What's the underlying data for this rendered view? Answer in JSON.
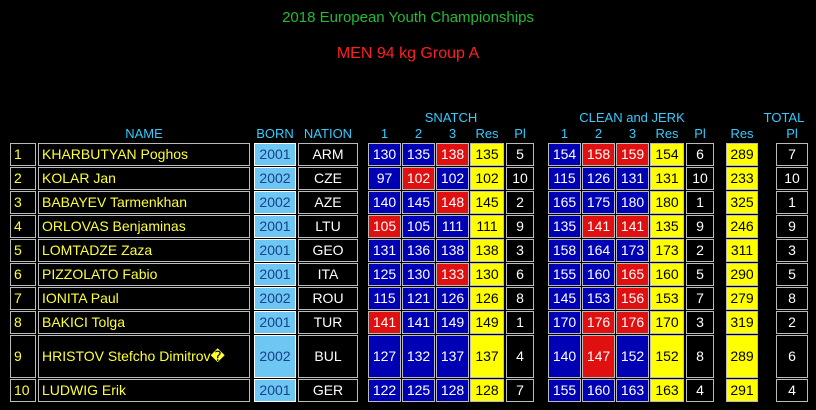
{
  "header": {
    "title": "2018 European Youth Championships",
    "subtitle": "MEN 94 kg Group A"
  },
  "table": {
    "group_headers": {
      "snatch": "SNATCH",
      "clean_and_jerk": "CLEAN and JERK",
      "total": "TOTAL"
    },
    "columns": [
      "NAME",
      "BORN",
      "NATION",
      "1",
      "2",
      "3",
      "Res",
      "Pl",
      "1",
      "2",
      "3",
      "Res",
      "Pl",
      "Res",
      "Pl"
    ],
    "rows": [
      {
        "rank": 1,
        "name": "KHARBUTYAN Poghos",
        "born": 2001,
        "nation": "ARM",
        "snatch": [
          {
            "kg": 130,
            "made": true
          },
          {
            "kg": 135,
            "made": true
          },
          {
            "kg": 138,
            "made": false
          }
        ],
        "snatch_result": 135,
        "snatch_place": 5,
        "clean_and_jerk": [
          {
            "kg": 154,
            "made": true
          },
          {
            "kg": 158,
            "made": false
          },
          {
            "kg": 159,
            "made": false
          }
        ],
        "cj_result": 154,
        "cj_place": 6,
        "total": 289,
        "total_place": 7
      },
      {
        "rank": 2,
        "name": "KOLAR Jan",
        "born": 2002,
        "nation": "CZE",
        "snatch": [
          {
            "kg": 97,
            "made": true
          },
          {
            "kg": 102,
            "made": false
          },
          {
            "kg": 102,
            "made": true
          }
        ],
        "snatch_result": 102,
        "snatch_place": 10,
        "clean_and_jerk": [
          {
            "kg": 115,
            "made": true
          },
          {
            "kg": 126,
            "made": true
          },
          {
            "kg": 131,
            "made": true
          }
        ],
        "cj_result": 131,
        "cj_place": 10,
        "total": 233,
        "total_place": 10
      },
      {
        "rank": 3,
        "name": "BABAYEV Tarmenkhan",
        "born": 2002,
        "nation": "AZE",
        "snatch": [
          {
            "kg": 140,
            "made": true
          },
          {
            "kg": 145,
            "made": true
          },
          {
            "kg": 148,
            "made": false
          }
        ],
        "snatch_result": 145,
        "snatch_place": 2,
        "clean_and_jerk": [
          {
            "kg": 165,
            "made": true
          },
          {
            "kg": 175,
            "made": true
          },
          {
            "kg": 180,
            "made": true
          }
        ],
        "cj_result": 180,
        "cj_place": 1,
        "total": 325,
        "total_place": 1
      },
      {
        "rank": 4,
        "name": "ORLOVAS Benjaminas",
        "born": 2001,
        "nation": "LTU",
        "snatch": [
          {
            "kg": 105,
            "made": false
          },
          {
            "kg": 105,
            "made": true
          },
          {
            "kg": 111,
            "made": true
          }
        ],
        "snatch_result": 111,
        "snatch_place": 9,
        "clean_and_jerk": [
          {
            "kg": 135,
            "made": true
          },
          {
            "kg": 141,
            "made": false
          },
          {
            "kg": 141,
            "made": false
          }
        ],
        "cj_result": 135,
        "cj_place": 9,
        "total": 246,
        "total_place": 9
      },
      {
        "rank": 5,
        "name": "LOMTADZE Zaza",
        "born": 2001,
        "nation": "GEO",
        "snatch": [
          {
            "kg": 131,
            "made": true
          },
          {
            "kg": 136,
            "made": true
          },
          {
            "kg": 138,
            "made": true
          }
        ],
        "snatch_result": 138,
        "snatch_place": 3,
        "clean_and_jerk": [
          {
            "kg": 158,
            "made": true
          },
          {
            "kg": 164,
            "made": true
          },
          {
            "kg": 173,
            "made": true
          }
        ],
        "cj_result": 173,
        "cj_place": 2,
        "total": 311,
        "total_place": 3
      },
      {
        "rank": 6,
        "name": "PIZZOLATO Fabio",
        "born": 2001,
        "nation": "ITA",
        "snatch": [
          {
            "kg": 125,
            "made": true
          },
          {
            "kg": 130,
            "made": true
          },
          {
            "kg": 133,
            "made": false
          }
        ],
        "snatch_result": 130,
        "snatch_place": 6,
        "clean_and_jerk": [
          {
            "kg": 155,
            "made": true
          },
          {
            "kg": 160,
            "made": true
          },
          {
            "kg": 165,
            "made": false
          }
        ],
        "cj_result": 160,
        "cj_place": 5,
        "total": 290,
        "total_place": 5
      },
      {
        "rank": 7,
        "name": "IONITA Paul",
        "born": 2002,
        "nation": "ROU",
        "snatch": [
          {
            "kg": 115,
            "made": true
          },
          {
            "kg": 121,
            "made": true
          },
          {
            "kg": 126,
            "made": true
          }
        ],
        "snatch_result": 126,
        "snatch_place": 8,
        "clean_and_jerk": [
          {
            "kg": 145,
            "made": true
          },
          {
            "kg": 153,
            "made": true
          },
          {
            "kg": 156,
            "made": false
          }
        ],
        "cj_result": 153,
        "cj_place": 7,
        "total": 279,
        "total_place": 8
      },
      {
        "rank": 8,
        "name": "BAKICI Tolga",
        "born": 2001,
        "nation": "TUR",
        "snatch": [
          {
            "kg": 141,
            "made": false
          },
          {
            "kg": 141,
            "made": true
          },
          {
            "kg": 149,
            "made": true
          }
        ],
        "snatch_result": 149,
        "snatch_place": 1,
        "clean_and_jerk": [
          {
            "kg": 170,
            "made": true
          },
          {
            "kg": 176,
            "made": false
          },
          {
            "kg": 176,
            "made": false
          }
        ],
        "cj_result": 170,
        "cj_place": 3,
        "total": 319,
        "total_place": 2
      },
      {
        "rank": 9,
        "name": "HRISTOV Stefcho Dimitrov�",
        "born": 2002,
        "nation": "BUL",
        "snatch": [
          {
            "kg": 127,
            "made": true
          },
          {
            "kg": 132,
            "made": true
          },
          {
            "kg": 137,
            "made": true
          }
        ],
        "snatch_result": 137,
        "snatch_place": 4,
        "clean_and_jerk": [
          {
            "kg": 140,
            "made": true
          },
          {
            "kg": 147,
            "made": false
          },
          {
            "kg": 152,
            "made": true
          }
        ],
        "cj_result": 152,
        "cj_place": 8,
        "total": 289,
        "total_place": 6
      },
      {
        "rank": 10,
        "name": "LUDWIG Erik",
        "born": 2001,
        "nation": "GER",
        "snatch": [
          {
            "kg": 122,
            "made": true
          },
          {
            "kg": 125,
            "made": true
          },
          {
            "kg": 128,
            "made": true
          }
        ],
        "snatch_result": 128,
        "snatch_place": 7,
        "clean_and_jerk": [
          {
            "kg": 155,
            "made": true
          },
          {
            "kg": 160,
            "made": true
          },
          {
            "kg": 163,
            "made": true
          }
        ],
        "cj_result": 163,
        "cj_place": 4,
        "total": 291,
        "total_place": 4
      }
    ]
  }
}
